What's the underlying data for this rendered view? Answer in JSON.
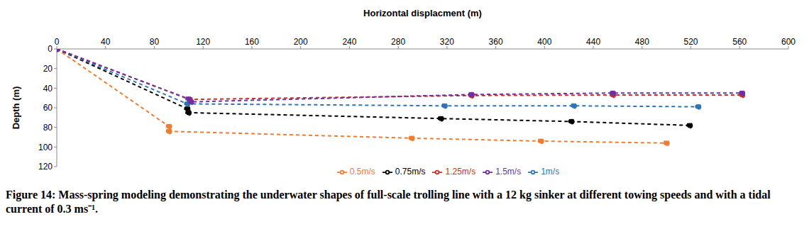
{
  "chart_data": {
    "type": "line",
    "x_label": "Horizontal displacment (m)",
    "y_label": "Depth (m)",
    "caption": "Figure 14: Mass-spring modeling demonstrating the underwater shapes of full-scale trolling line with a 12 kg sinker at different towing speeds and with a tidal current of 0.3 ms⁻¹.",
    "xlim": [
      0,
      600
    ],
    "xticks": [
      0,
      40,
      80,
      120,
      160,
      200,
      240,
      280,
      320,
      360,
      400,
      440,
      480,
      520,
      560,
      600
    ],
    "ylim": [
      0,
      120
    ],
    "yticks": [
      0,
      20,
      40,
      60,
      80,
      100,
      120
    ],
    "grid": false,
    "legend": "bottom",
    "series": [
      {
        "name": "0.5m/s",
        "color": "#ED7D31",
        "marker": "circle",
        "line_style": "dashed",
        "x": [
          0,
          92,
          92,
          291,
          397,
          500
        ],
        "values": [
          0,
          79,
          84,
          91,
          94,
          96
        ]
      },
      {
        "name": "0.75m/s",
        "color": "#000000",
        "marker": "circle",
        "line_style": "dashed",
        "x": [
          0,
          107,
          108,
          315,
          422,
          519
        ],
        "values": [
          0,
          61,
          65,
          71,
          74,
          78
        ]
      },
      {
        "name": "1m/s",
        "color": "#2E75B6",
        "marker": "circle",
        "line_style": "dashed",
        "x": [
          0,
          107,
          318,
          424,
          526
        ],
        "values": [
          0,
          56,
          58,
          58,
          59
        ]
      },
      {
        "name": "1.25m/s",
        "color": "#C8302C",
        "marker": "circle",
        "line_style": "dashed",
        "x": [
          0,
          109,
          340,
          456,
          562
        ],
        "values": [
          0,
          51.5,
          47.5,
          47,
          47
        ]
      },
      {
        "name": "1.5m/s",
        "color": "#7030A0",
        "marker": "circle",
        "line_style": "dashed",
        "x": [
          0,
          108,
          110,
          340,
          456,
          562
        ],
        "values": [
          0,
          51,
          54,
          46.5,
          45,
          45
        ]
      }
    ]
  }
}
